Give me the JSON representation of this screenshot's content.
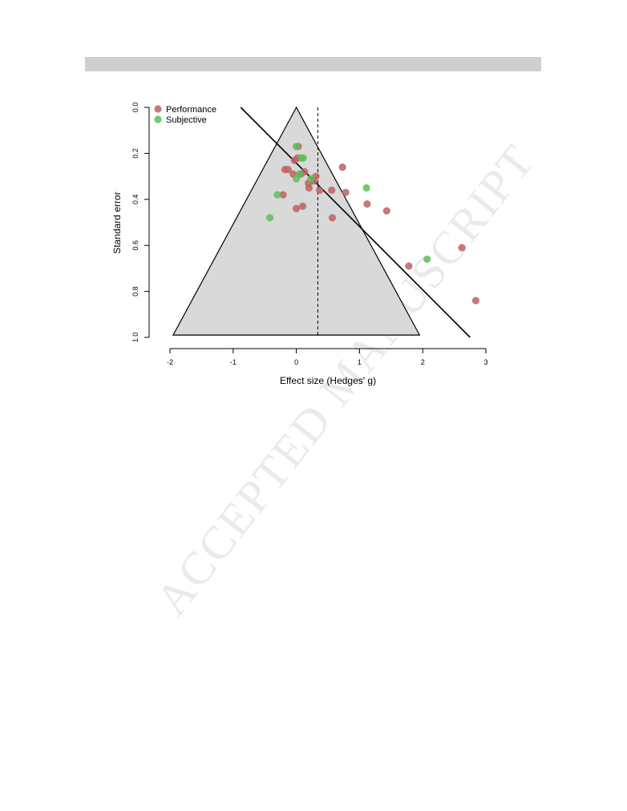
{
  "watermark": "ACCEPTED MANUSCRIPT",
  "chart_data": {
    "type": "scatter",
    "subtype": "funnel-plot",
    "title": "",
    "xlabel": "Effect size (Hedges' g)",
    "ylabel": "Standard error",
    "xlim": [
      -2,
      3
    ],
    "ylim": [
      0,
      1
    ],
    "y_reversed": true,
    "x_ticks": [
      "-2",
      "-1",
      "0",
      "1",
      "2",
      "3"
    ],
    "y_ticks": [
      "0.0",
      "0.2",
      "0.4",
      "0.6",
      "0.8",
      "1.0"
    ],
    "grid": false,
    "legend_position": "top-left",
    "pooled_effect": 0.34,
    "funnel_apex": [
      0,
      0
    ],
    "funnel_base": [
      [
        -1.95,
        0.99
      ],
      [
        1.95,
        0.99
      ]
    ],
    "regression_line": [
      [
        -0.88,
        0.0
      ],
      [
        2.75,
        1.0
      ]
    ],
    "colors": {
      "Performance": "#c06060",
      "Subjective": "#5cbf5c",
      "funnel_fill": "#d9d9d9"
    },
    "series": [
      {
        "name": "Performance",
        "points": [
          [
            0.03,
            0.17
          ],
          [
            -0.03,
            0.23
          ],
          [
            0.02,
            0.22
          ],
          [
            -0.18,
            0.27
          ],
          [
            -0.13,
            0.27
          ],
          [
            0.13,
            0.28
          ],
          [
            -0.05,
            0.29
          ],
          [
            0.07,
            0.29
          ],
          [
            0.31,
            0.3
          ],
          [
            0.19,
            0.33
          ],
          [
            0.27,
            0.32
          ],
          [
            0.73,
            0.26
          ],
          [
            0.2,
            0.35
          ],
          [
            0.37,
            0.36
          ],
          [
            0.56,
            0.36
          ],
          [
            0.78,
            0.37
          ],
          [
            -0.21,
            0.38
          ],
          [
            1.12,
            0.42
          ],
          [
            0.1,
            0.43
          ],
          [
            0.0,
            0.44
          ],
          [
            1.43,
            0.45
          ],
          [
            0.57,
            0.48
          ],
          [
            2.62,
            0.61
          ],
          [
            1.78,
            0.69
          ],
          [
            2.84,
            0.84
          ]
        ]
      },
      {
        "name": "Subjective",
        "points": [
          [
            0.0,
            0.17
          ],
          [
            0.11,
            0.22
          ],
          [
            0.08,
            0.22
          ],
          [
            0.05,
            0.29
          ],
          [
            0.0,
            0.31
          ],
          [
            0.23,
            0.31
          ],
          [
            1.11,
            0.35
          ],
          [
            -0.3,
            0.38
          ],
          [
            -0.42,
            0.48
          ],
          [
            2.07,
            0.66
          ]
        ]
      }
    ]
  }
}
